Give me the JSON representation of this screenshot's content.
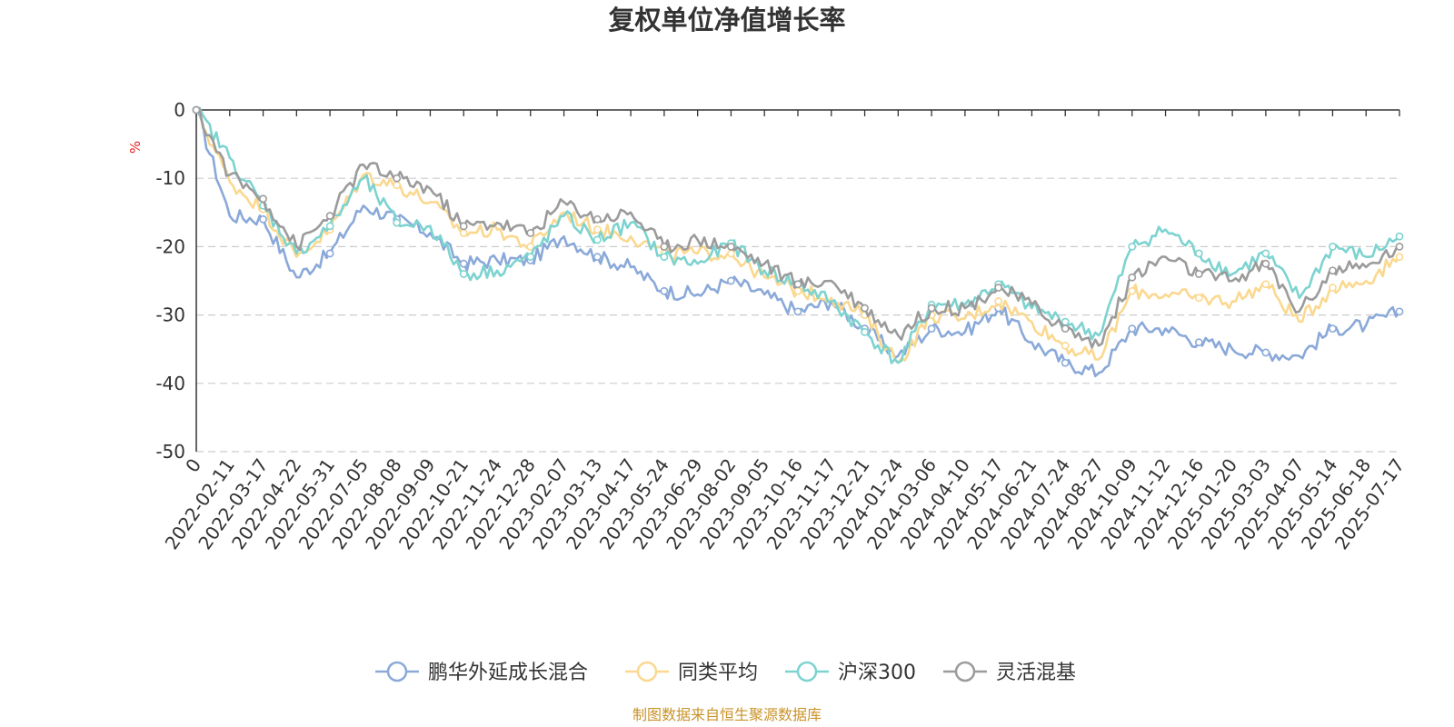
{
  "chart_data": {
    "type": "line",
    "title": "复权单位净值增长率",
    "ylabel": "%",
    "ylim": [
      -50,
      0
    ],
    "yticks": [
      0,
      -10,
      -20,
      -30,
      -40,
      -50
    ],
    "grid": true,
    "legend_position": "bottom",
    "x_tick_labels": [
      "0",
      "2022-02-11",
      "2022-03-17",
      "2022-04-22",
      "2022-05-31",
      "2022-07-05",
      "2022-08-08",
      "2022-09-09",
      "2022-10-21",
      "2022-11-24",
      "2022-12-28",
      "2023-02-07",
      "2023-03-13",
      "2023-04-17",
      "2023-05-24",
      "2023-06-29",
      "2023-08-02",
      "2023-09-05",
      "2023-10-16",
      "2023-11-17",
      "2023-12-21",
      "2024-01-24",
      "2024-03-06",
      "2024-04-10",
      "2024-05-17",
      "2024-06-21",
      "2024-07-24",
      "2024-08-27",
      "2024-10-09",
      "2024-11-12",
      "2024-12-16",
      "2025-01-20",
      "2025-03-03",
      "2025-04-07",
      "2025-05-14",
      "2025-06-18",
      "2025-07-17"
    ],
    "series": [
      {
        "name": "鹏华外延成长混合",
        "color": "#8aa9d9",
        "values": [
          0,
          -15.5,
          -16,
          -24.5,
          -21,
          -14,
          -16,
          -18,
          -22.5,
          -22,
          -22,
          -18.5,
          -21.5,
          -23,
          -26.5,
          -27,
          -25,
          -27,
          -29.5,
          -28,
          -32,
          -36,
          -32,
          -32.5,
          -29,
          -34,
          -37,
          -38.5,
          -32,
          -32,
          -34,
          -35,
          -35.5,
          -36,
          -32,
          -31.5,
          -29.5
        ]
      },
      {
        "name": "同类平均",
        "color": "#fbd88f",
        "values": [
          0,
          -10.5,
          -14.5,
          -21.5,
          -17.5,
          -9.5,
          -11,
          -13.5,
          -18,
          -17.5,
          -20,
          -15,
          -17.5,
          -18.5,
          -21,
          -21,
          -21,
          -24.5,
          -26.5,
          -27.5,
          -30,
          -37,
          -30,
          -30.5,
          -28,
          -31,
          -34.5,
          -36.5,
          -26.5,
          -27,
          -27.5,
          -28,
          -25.5,
          -31,
          -26,
          -25,
          -21.5
        ]
      },
      {
        "name": "沪深300",
        "color": "#7dd3d0",
        "values": [
          0,
          -7,
          -14,
          -21,
          -17,
          -10,
          -16.5,
          -17,
          -24,
          -23.5,
          -21.5,
          -15.5,
          -19,
          -16.5,
          -21.5,
          -22.5,
          -19.5,
          -23.5,
          -25.5,
          -28,
          -32.5,
          -37,
          -28.5,
          -28.5,
          -25.5,
          -29,
          -31,
          -33,
          -20,
          -17.5,
          -21,
          -24,
          -21,
          -27.5,
          -20,
          -21.5,
          -18.5
        ]
      },
      {
        "name": "灵活混基",
        "color": "#9b9b9b",
        "values": [
          0,
          -9.5,
          -13,
          -20,
          -15.5,
          -8,
          -10,
          -11.5,
          -17,
          -16.5,
          -18,
          -13.5,
          -16,
          -15,
          -20,
          -19,
          -20,
          -22.5,
          -25.5,
          -25,
          -29,
          -33,
          -29,
          -29,
          -26,
          -28.5,
          -32,
          -34.5,
          -24.5,
          -21.5,
          -24,
          -25,
          -22.5,
          -29.5,
          -23.5,
          -23,
          -20
        ]
      }
    ]
  },
  "source_note": "制图数据来自恒生聚源数据库"
}
